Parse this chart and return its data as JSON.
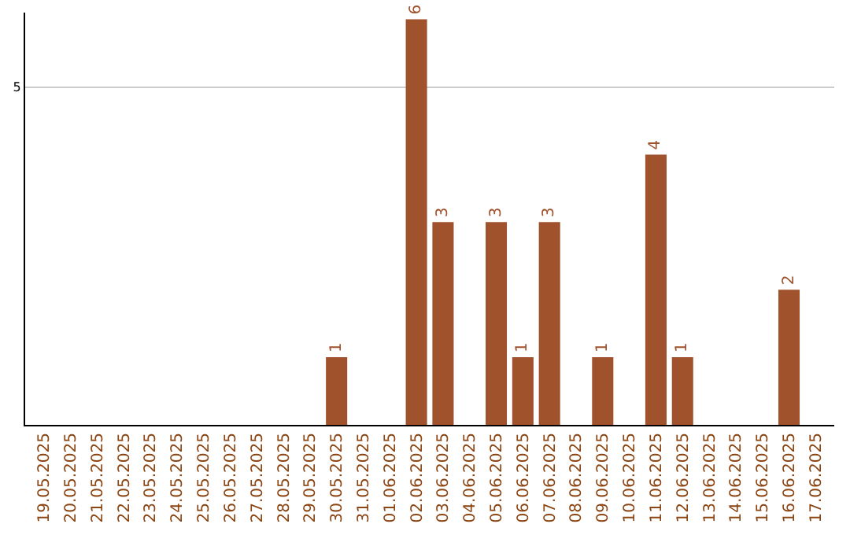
{
  "chart_data": {
    "type": "bar",
    "categories": [
      "19.05.2025",
      "20.05.2025",
      "21.05.2025",
      "22.05.2025",
      "23.05.2025",
      "24.05.2025",
      "25.05.2025",
      "26.05.2025",
      "27.05.2025",
      "28.05.2025",
      "29.05.2025",
      "30.05.2025",
      "31.05.2025",
      "01.06.2025",
      "02.06.2025",
      "03.06.2025",
      "04.06.2025",
      "05.06.2025",
      "06.06.2025",
      "07.06.2025",
      "08.06.2025",
      "09.06.2025",
      "10.06.2025",
      "11.06.2025",
      "12.06.2025",
      "13.06.2025",
      "14.06.2025",
      "15.06.2025",
      "16.06.2025",
      "17.06.2025"
    ],
    "values": [
      0,
      0,
      0,
      0,
      0,
      0,
      0,
      0,
      0,
      0,
      0,
      1,
      0,
      0,
      6,
      3,
      0,
      3,
      1,
      3,
      0,
      1,
      0,
      4,
      1,
      0,
      0,
      0,
      2,
      0
    ],
    "value_labels": [
      null,
      null,
      null,
      null,
      null,
      null,
      null,
      null,
      null,
      null,
      null,
      "1",
      null,
      null,
      "6",
      "3",
      null,
      "3",
      "1",
      "3",
      null,
      "1",
      null,
      "4",
      "1",
      null,
      null,
      null,
      "2",
      null
    ],
    "color": "#a0522d",
    "ylim": [
      0,
      6.1
    ],
    "yticks": [
      5
    ],
    "grid": "y",
    "legend": false
  }
}
